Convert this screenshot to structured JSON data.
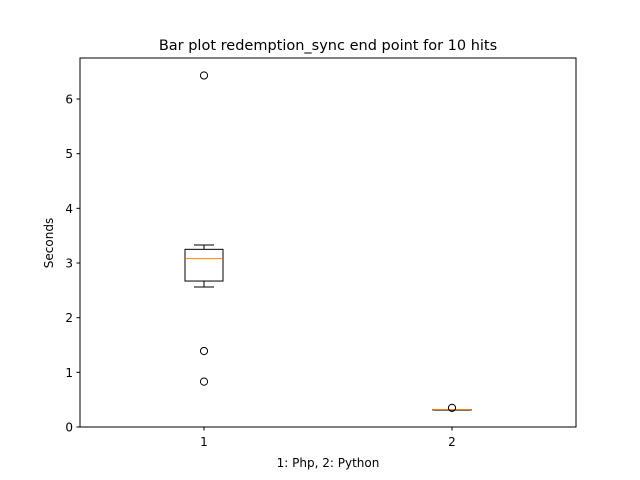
{
  "chart_data": {
    "type": "box",
    "title": "Bar plot redemption_sync end point for 10 hits",
    "xlabel": "1: Php, 2: Python",
    "ylabel": "Seconds",
    "categories": [
      "1",
      "2"
    ],
    "ylim": [
      0,
      6.75
    ],
    "xlim": [
      0.5,
      2.5
    ],
    "yticks": [
      0,
      1,
      2,
      3,
      4,
      5,
      6
    ],
    "grid": false,
    "colors": {
      "box": "#000000",
      "median": "#ff7f0e",
      "outlier": "#000000"
    },
    "boxes": [
      {
        "label": "1",
        "whisker_low": 2.56,
        "q1": 2.67,
        "median": 3.08,
        "q3": 3.25,
        "whisker_high": 3.33,
        "outliers": [
          6.43,
          1.39,
          0.83
        ]
      },
      {
        "label": "2",
        "whisker_low": 0.31,
        "q1": 0.31,
        "median": 0.32,
        "q3": 0.32,
        "whisker_high": 0.32,
        "outliers": [
          0.35
        ]
      }
    ]
  }
}
